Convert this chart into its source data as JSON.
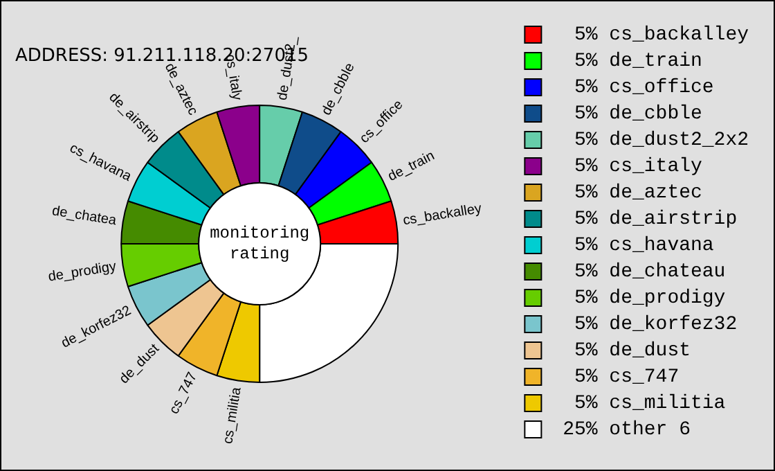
{
  "chart_data": {
    "type": "donut",
    "subtitle": "ADDRESS: 91.211.118.20:27015",
    "categories": [
      "cs_backalley",
      "de_train",
      "cs_office",
      "de_cbble",
      "de_dust2_2x2",
      "cs_italy",
      "de_aztec",
      "de_airstrip",
      "cs_havana",
      "de_chateau",
      "de_prodigy",
      "de_korfez32",
      "de_dust",
      "cs_747",
      "cs_militia",
      "other 6"
    ],
    "values": [
      5,
      5,
      5,
      5,
      5,
      5,
      5,
      5,
      5,
      5,
      5,
      5,
      5,
      5,
      5,
      25
    ],
    "value_labels": [
      "5%",
      "5%",
      "5%",
      "5%",
      "5%",
      "5%",
      "5%",
      "5%",
      "5%",
      "5%",
      "5%",
      "5%",
      "5%",
      "5%",
      "5%",
      "25%"
    ],
    "colors": [
      "#ff0000",
      "#00ff00",
      "#0000ff",
      "#0f4c8a",
      "#66cdaa",
      "#8b008b",
      "#daa520",
      "#008b8b",
      "#00ced1",
      "#458b00",
      "#66cd00",
      "#7ac5cd",
      "#eec591",
      "#f0b429",
      "#eec900",
      "#ffffff"
    ],
    "legend": "right",
    "annotations": [
      {
        "text": "cs_backalley",
        "x": "cs_backalley"
      },
      {
        "text": "de_train",
        "x": "de_train"
      },
      {
        "text": "cs_office",
        "x": "cs_office"
      },
      {
        "text": "de_cbble",
        "x": "de_cbble"
      },
      {
        "text": "de_dust2_",
        "x": "de_dust2_2x2"
      },
      {
        "text": "cs_italy",
        "x": "cs_italy"
      },
      {
        "text": "de_aztec",
        "x": "de_aztec"
      },
      {
        "text": "de_airstrip",
        "x": "de_airstrip"
      },
      {
        "text": "cs_havana",
        "x": "cs_havana"
      },
      {
        "text": "de_chatea",
        "x": "de_chateau"
      },
      {
        "text": "de_prodigy",
        "x": "de_prodigy"
      },
      {
        "text": "de_korfez32",
        "x": "de_korfez32"
      },
      {
        "text": "de_dust",
        "x": "de_dust"
      },
      {
        "text": "cs_747",
        "x": "cs_747"
      },
      {
        "text": "cs_militia",
        "x": "cs_militia"
      },
      "monitoring rating"
    ]
  }
}
